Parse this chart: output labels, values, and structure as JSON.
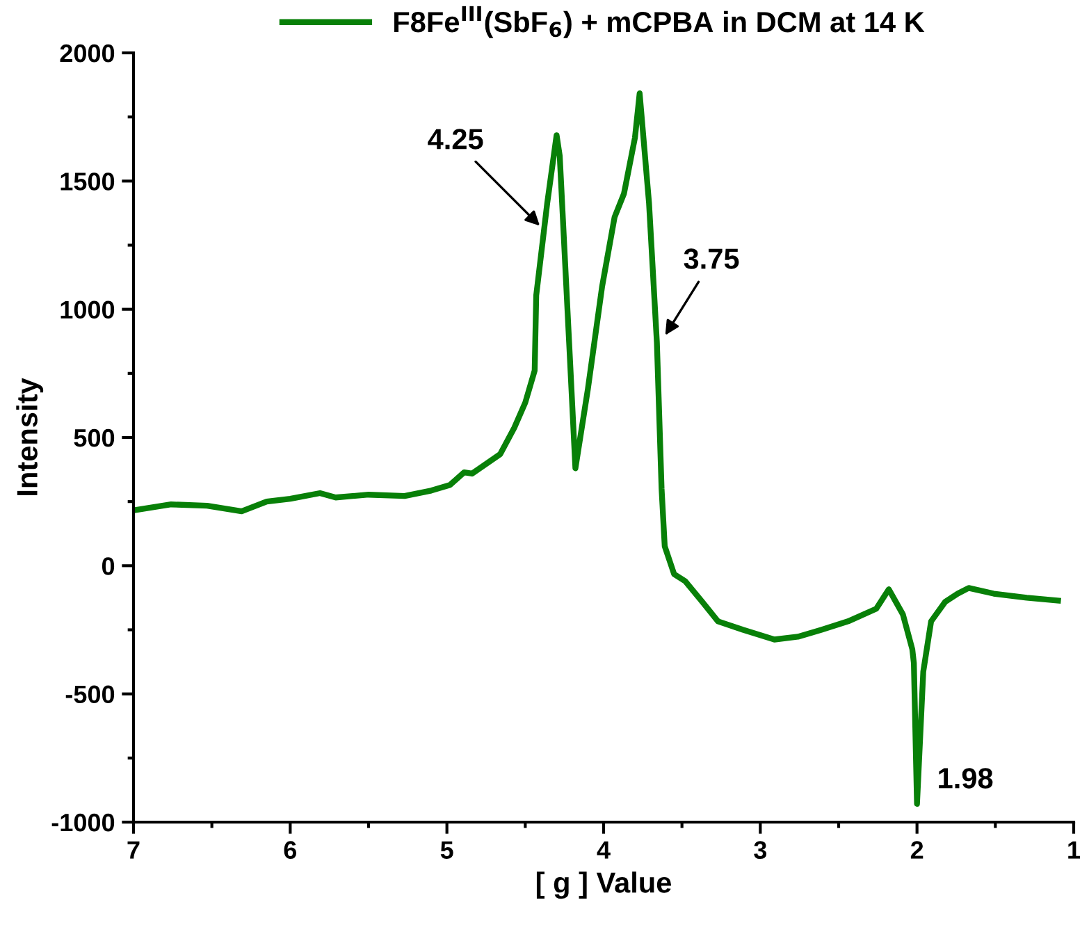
{
  "chart_data": {
    "type": "line",
    "xlabel": "[ g ] Value",
    "ylabel": "Intensity",
    "xlim": [
      7,
      1
    ],
    "ylim": [
      -1000,
      2000
    ],
    "xticks": [
      7,
      {
        "value": 6.5,
        "label": null
      },
      6,
      {
        "value": 5.5,
        "label": null
      },
      5,
      {
        "value": 4.5,
        "label": null
      },
      4,
      {
        "value": 3.5,
        "label": null
      },
      3,
      {
        "value": 2.5,
        "label": null
      },
      2,
      {
        "value": 1.5,
        "label": null
      },
      1
    ],
    "yticks": [
      -1000,
      {
        "value": -750,
        "label": null
      },
      -500,
      {
        "value": -250,
        "label": null
      },
      0,
      {
        "value": 250,
        "label": null
      },
      500,
      {
        "value": 750,
        "label": null
      },
      1000,
      {
        "value": 1250,
        "label": null
      },
      1500,
      {
        "value": 1750,
        "label": null
      },
      2000
    ],
    "grid": false,
    "legend": "top",
    "line_style": "solid",
    "marker": "none",
    "series": [
      {
        "name": "F8Fe$^{III}$(SbF$_{6}$) + mCPBA in DCM at 14 K",
        "color": "#088008",
        "x": [
          6.99,
          6.76,
          6.53,
          6.31,
          6.15,
          6.0,
          5.81,
          5.71,
          5.5,
          5.27,
          5.1,
          4.98,
          4.89,
          4.84,
          4.66,
          4.57,
          4.5,
          4.44,
          4.43,
          4.36,
          4.3,
          4.28,
          4.22,
          4.18,
          4.1,
          4.01,
          3.93,
          3.87,
          3.8,
          3.77,
          3.71,
          3.66,
          3.63,
          3.61,
          3.55,
          3.48,
          3.37,
          3.27,
          3.11,
          2.91,
          2.76,
          2.61,
          2.44,
          2.26,
          2.18,
          2.09,
          2.03,
          2.02,
          2.0,
          1.96,
          1.91,
          1.82,
          1.74,
          1.67,
          1.51,
          1.3,
          1.1
        ],
        "values": [
          217,
          239,
          234,
          212,
          250,
          261,
          283,
          266,
          277,
          272,
          293,
          315,
          364,
          359,
          435,
          538,
          636,
          761,
          1054,
          1413,
          1679,
          1598,
          870,
          380,
          690,
          1087,
          1359,
          1451,
          1669,
          1842,
          1413,
          870,
          300,
          76,
          -33,
          -60,
          -141,
          -217,
          -250,
          -288,
          -277,
          -250,
          -217,
          -168,
          -92,
          -190,
          -326,
          -380,
          -929,
          -413,
          -217,
          -141,
          -109,
          -87,
          -109,
          -125,
          -136
        ]
      }
    ],
    "annotations": [
      {
        "text": "4.25",
        "x": 4.39,
        "y": 1315
      },
      {
        "text": "3.75",
        "x": 3.62,
        "y": 886
      },
      {
        "text": "1.98",
        "x": 2.0,
        "y": -929
      }
    ]
  }
}
